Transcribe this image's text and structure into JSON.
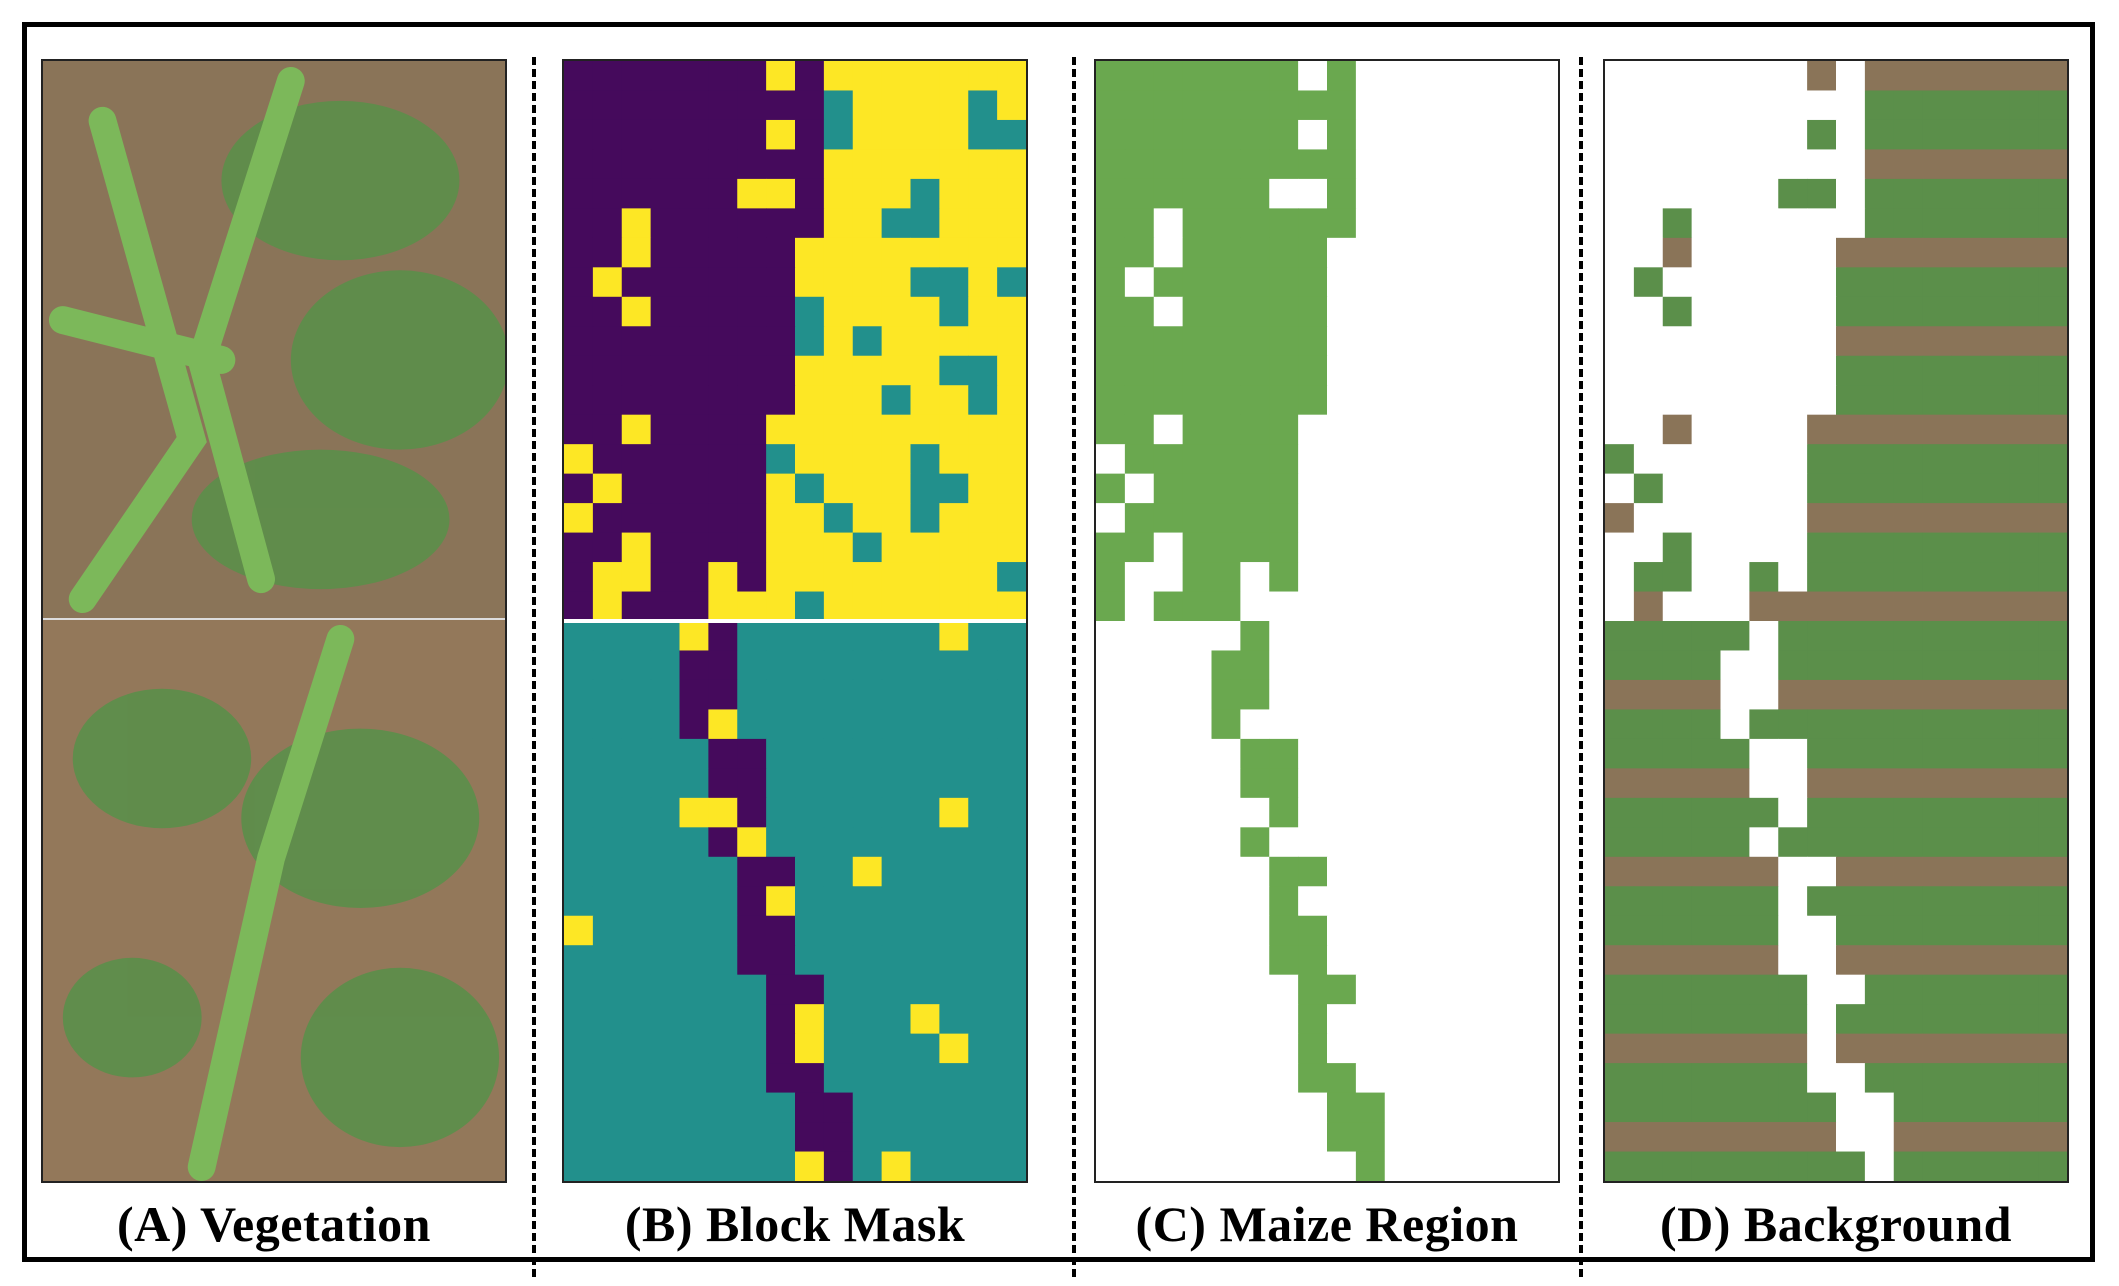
{
  "figure": {
    "panels": [
      {
        "id": "A",
        "caption": "(A) Vegetation"
      },
      {
        "id": "B",
        "caption": "(B) Block Mask"
      },
      {
        "id": "C",
        "caption": "(C) Maize Region"
      },
      {
        "id": "D",
        "caption": "(D) Background"
      }
    ],
    "colors": {
      "mask_maize": "#450a5c",
      "mask_weed": "#fde725",
      "mask_soil": "#22908c",
      "soil": "#8a7458",
      "leaf": "#5b8f4a",
      "maize_leaf": "#6aa84f",
      "masked_out": "#ffffff"
    }
  }
}
